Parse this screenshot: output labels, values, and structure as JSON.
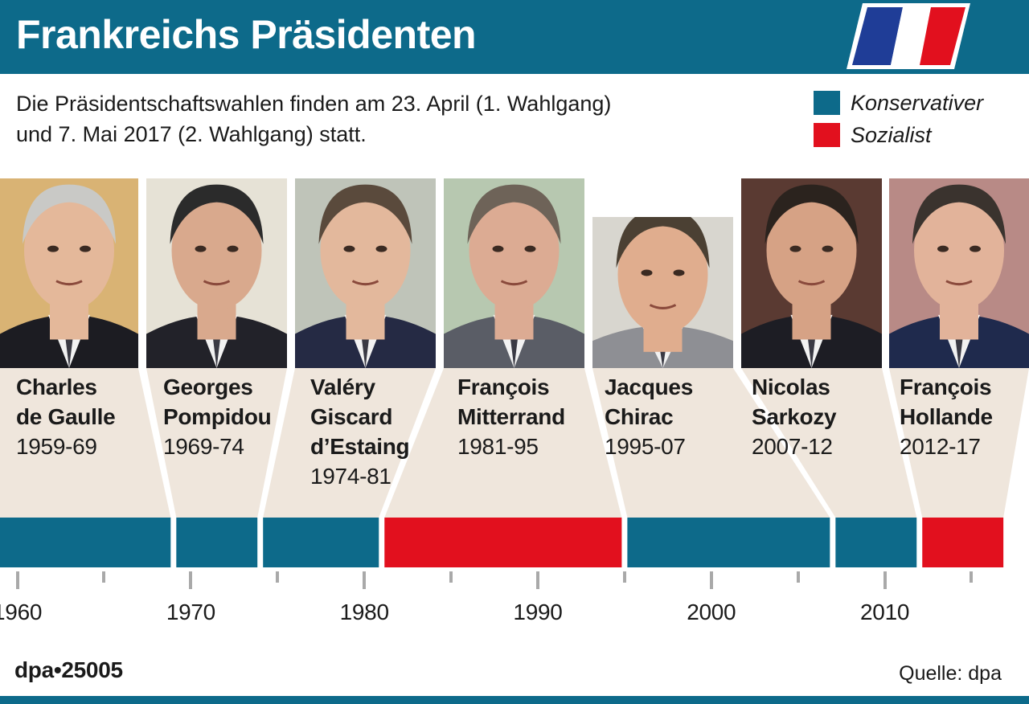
{
  "header": {
    "title": "Frankreichs Präsidenten",
    "flag_colors": [
      "#1f3d97",
      "#ffffff",
      "#e2101e"
    ]
  },
  "subtitle": "Die Präsidentschaftswahlen finden am 23. April (1. Wahlgang)\nund 7. Mai 2017 (2. Wahlgang) statt.",
  "legend": [
    {
      "label": "Konservativer",
      "color": "#0d6a8a"
    },
    {
      "label": "Sozialist",
      "color": "#e2101e"
    }
  ],
  "colors": {
    "conservative": "#0d6a8a",
    "socialist": "#e2101e",
    "connector": "#efe6dc"
  },
  "presidents": [
    {
      "name": "Charles\nde Gaulle",
      "term": "1959-69",
      "party": "conservative",
      "start": 1959,
      "end": 1969,
      "photo_bg": "#d9b374",
      "skin": "#e4b89a",
      "hair": "#c9c9c6",
      "suit": "#1c1c22"
    },
    {
      "name": "Georges\nPompidou",
      "term": "1969-74",
      "party": "conservative",
      "start": 1969,
      "end": 1974,
      "photo_bg": "#e6e2d6",
      "skin": "#d9a98d",
      "hair": "#2b2b2b",
      "suit": "#222229"
    },
    {
      "name": "Valéry\nGiscard\nd’Estaing",
      "term": "1974-81",
      "party": "conservative",
      "start": 1974,
      "end": 1981,
      "photo_bg": "#bfc4b9",
      "skin": "#e3b89c",
      "hair": "#5a4a3c",
      "suit": "#252a44"
    },
    {
      "name": "François\nMitterrand",
      "term": "1981-95",
      "party": "socialist",
      "start": 1981,
      "end": 1995,
      "photo_bg": "#b7c8b0",
      "skin": "#dcab93",
      "hair": "#6e6358",
      "suit": "#5a5d66"
    },
    {
      "name": "Jacques\nChirac",
      "term": "1995-07",
      "party": "conservative",
      "start": 1995,
      "end": 2007,
      "photo_bg": "#d8d6cf",
      "skin": "#e0ad8e",
      "hair": "#4b4033",
      "suit": "#8e8f94"
    },
    {
      "name": "Nicolas\nSarkozy",
      "term": "2007-12",
      "party": "conservative",
      "start": 2007,
      "end": 2012,
      "photo_bg": "#5a3a32",
      "skin": "#d6a285",
      "hair": "#2b231e",
      "suit": "#1d1d24"
    },
    {
      "name": "François\nHollande",
      "term": "2012-17",
      "party": "socialist",
      "start": 2012,
      "end": 2017,
      "photo_bg": "#b88a86",
      "skin": "#e2b39a",
      "hair": "#3a332e",
      "suit": "#1f2a4d"
    }
  ],
  "axis": {
    "start": 1959,
    "end": 2018,
    "labels": [
      "1960",
      "1970",
      "1980",
      "1990",
      "2000",
      "2010"
    ]
  },
  "footer": {
    "id": "dpa•25005",
    "source": "Quelle: dpa"
  }
}
